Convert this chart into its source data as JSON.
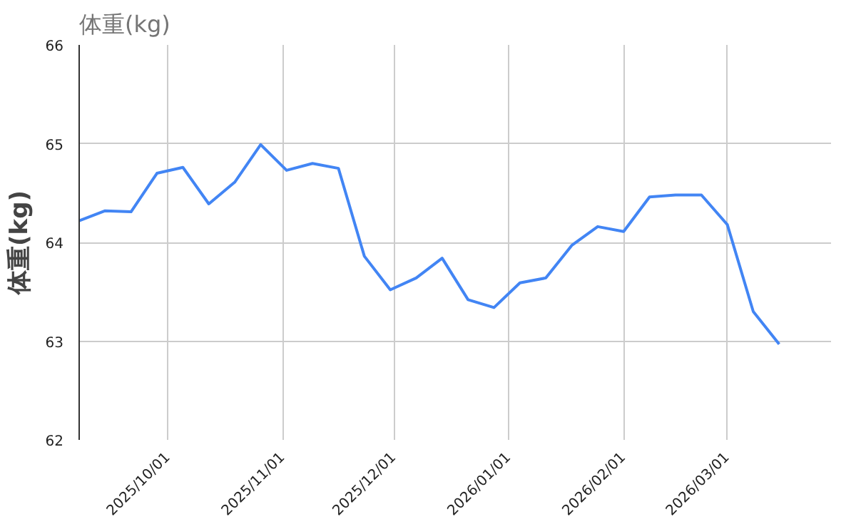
{
  "chart_data": {
    "type": "line",
    "title": "体重(kg)",
    "ylabel": "体重(kg)",
    "x": [
      "2025-09-07",
      "2025-09-14",
      "2025-09-21",
      "2025-09-28",
      "2025-10-05",
      "2025-10-12",
      "2025-10-19",
      "2025-10-26",
      "2025-11-02",
      "2025-11-09",
      "2025-11-16",
      "2025-11-23",
      "2025-11-30",
      "2025-12-07",
      "2025-12-14",
      "2025-12-21",
      "2025-12-28",
      "2026-01-04",
      "2026-01-11",
      "2026-01-18",
      "2026-01-25",
      "2026-02-01",
      "2026-02-08",
      "2026-02-15",
      "2026-02-22",
      "2026-03-01",
      "2026-03-08",
      "2026-03-15"
    ],
    "series": [
      {
        "color": "#4285f4",
        "values": [
          64.22,
          64.32,
          64.31,
          64.7,
          64.76,
          64.39,
          64.61,
          64.99,
          64.73,
          64.8,
          64.75,
          63.86,
          63.52,
          63.64,
          63.84,
          63.42,
          63.34,
          63.59,
          63.64,
          63.97,
          64.16,
          64.11,
          64.46,
          64.48,
          64.48,
          64.18,
          63.3,
          62.97
        ]
      }
    ],
    "xlim": [
      "2025-09-07",
      "2026-03-29"
    ],
    "xticks": [
      {
        "value": "2025-10-01",
        "label": "2025/10/01"
      },
      {
        "value": "2025-11-01",
        "label": "2025/11/01"
      },
      {
        "value": "2025-12-01",
        "label": "2025/12/01"
      },
      {
        "value": "2026-01-01",
        "label": "2026/01/01"
      },
      {
        "value": "2026-02-01",
        "label": "2026/02/01"
      },
      {
        "value": "2026-03-01",
        "label": "2026/03/01"
      }
    ],
    "ylim": [
      62,
      66
    ],
    "yticks": [
      62,
      63,
      64,
      65,
      66
    ],
    "grid": true,
    "marker": "none",
    "line_style": "solid"
  }
}
